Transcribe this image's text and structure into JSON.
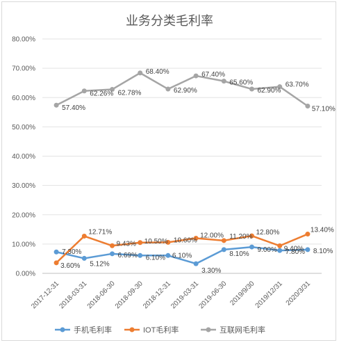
{
  "chart_data": {
    "type": "line",
    "title": "业务分类毛利率",
    "xlabel": "",
    "ylabel": "",
    "categories": [
      "2017-12-31",
      "2018-03-31",
      "2018-06-30",
      "2018-09-30",
      "2018-12-31",
      "2019-03-31",
      "2019-06-30",
      "2019/9/30",
      "2019/12/31",
      "2020/3/31"
    ],
    "ylim": [
      0,
      80
    ],
    "yticks": [
      "0.00%",
      "10.00%",
      "20.00%",
      "30.00%",
      "40.00%",
      "50.00%",
      "60.00%",
      "70.00%",
      "80.00%"
    ],
    "grid": true,
    "legend_position": "bottom",
    "series": [
      {
        "name": "手机毛利率",
        "color": "#5b9bd5",
        "values": [
          7.3,
          5.12,
          6.69,
          6.1,
          6.1,
          3.3,
          8.1,
          9.0,
          7.8,
          8.1
        ],
        "labels": [
          "7.30%",
          "5.12%",
          "6.69%",
          "6.10%",
          "6.10%",
          "3.30%",
          "8.10%",
          "9.00%",
          "7.80%",
          "8.10%"
        ]
      },
      {
        "name": "IOT毛利率",
        "color": "#ed7d31",
        "values": [
          3.6,
          12.71,
          9.43,
          10.5,
          10.6,
          12.0,
          11.2,
          12.8,
          9.4,
          13.4
        ],
        "labels": [
          "3.60%",
          "12.71%",
          "9.43%",
          "10.50%",
          "10.60%",
          "12.00%",
          "11.20%",
          "12.80%",
          "9.40%",
          "13.40%"
        ]
      },
      {
        "name": "互联网毛利率",
        "color": "#a5a5a5",
        "values": [
          57.4,
          62.26,
          62.78,
          68.4,
          62.9,
          67.4,
          65.6,
          62.9,
          63.7,
          57.1
        ],
        "labels": [
          "57.40%",
          "62.26%",
          "62.78%",
          "68.40%",
          "62.90%",
          "67.40%",
          "65.60%",
          "62.90%",
          "63.70%",
          "57.10%"
        ]
      }
    ]
  }
}
